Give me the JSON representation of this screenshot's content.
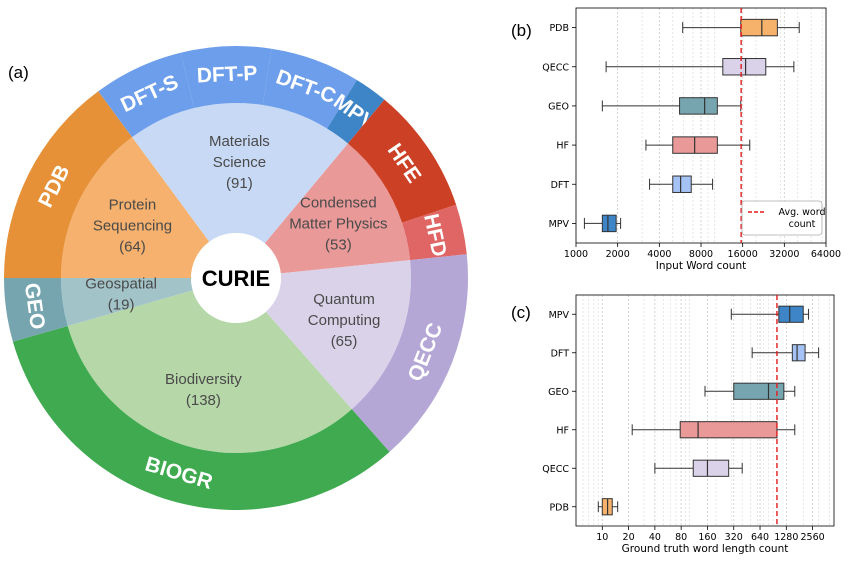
{
  "panels": {
    "a": "(a)",
    "b": "(b)",
    "c": "(c)"
  },
  "chart_data": [
    {
      "type": "pie",
      "panel": "(a)",
      "center_label": "CURIE",
      "inner": [
        {
          "lines": [
            "Protein",
            "Sequencing",
            "(64)"
          ],
          "value": 64,
          "color": "#f5b16d"
        },
        {
          "lines": [
            "Materials",
            "Science",
            "(91)"
          ],
          "value": 91,
          "color": "#c8d9f5"
        },
        {
          "lines": [
            "Condensed",
            "Matter Physics",
            "(53)"
          ],
          "value": 53,
          "color": "#ea9999"
        },
        {
          "lines": [
            "Quantum",
            "Computing",
            "(65)"
          ],
          "value": 65,
          "color": "#d9d2e9"
        },
        {
          "lines": [
            "Biodiversity",
            "(138)"
          ],
          "value": 138,
          "color": "#b6d7a8"
        },
        {
          "lines": [
            "Geospatial",
            "(19)"
          ],
          "value": 19,
          "color": "#a2c4c9"
        }
      ],
      "outer": [
        {
          "label": "PDB",
          "value": 64,
          "color": "#e69138"
        },
        {
          "label": "DFT-S",
          "value": 27,
          "color": "#6d9eeb"
        },
        {
          "label": "DFT-P",
          "value": 27,
          "color": "#6d9eeb"
        },
        {
          "label": "DFT-C",
          "value": 27,
          "color": "#6d9eeb"
        },
        {
          "label": "MPV",
          "value": 10,
          "color": "#3d85c6"
        },
        {
          "label": "HFE",
          "value": 38,
          "color": "#cc4125"
        },
        {
          "label": "HFD",
          "value": 15,
          "color": "#e06666"
        },
        {
          "label": "QECC",
          "value": 65,
          "color": "#b4a7d6"
        },
        {
          "label": "BIOGR",
          "value": 138,
          "color": "#3faa50"
        },
        {
          "label": "GEO",
          "value": 19,
          "color": "#76a5af"
        }
      ]
    },
    {
      "type": "box",
      "panel": "(b)",
      "xlabel": "Input Word count",
      "xscale": "log2",
      "xlim": [
        1000,
        64000
      ],
      "xticks": [
        1000,
        2000,
        4000,
        8000,
        16000,
        32000,
        64000
      ],
      "xtick_labels": [
        "1000",
        "2000",
        "4000",
        "8000",
        "16000",
        "32000",
        "64000"
      ],
      "reference_line": {
        "value": 15600,
        "label_lines": [
          "Avg. word",
          "count"
        ],
        "color": "#e31a1c"
      },
      "boxes": [
        {
          "label": "PDB",
          "whislo": 5900,
          "q1": 15500,
          "med": 22000,
          "q3": 28500,
          "whishi": 41000,
          "color": "#f6b26b"
        },
        {
          "label": "QECC",
          "whislo": 1650,
          "q1": 11500,
          "med": 16800,
          "q3": 23500,
          "whishi": 37500,
          "color": "#d9d2e9"
        },
        {
          "label": "GEO",
          "whislo": 1550,
          "q1": 5600,
          "med": 8500,
          "q3": 10500,
          "whishi": 15500,
          "color": "#76a5af"
        },
        {
          "label": "HF",
          "whislo": 3200,
          "q1": 5000,
          "med": 7200,
          "q3": 10500,
          "whishi": 18000,
          "color": "#ea9999"
        },
        {
          "label": "DFT",
          "whislo": 3400,
          "q1": 5000,
          "med": 5700,
          "q3": 6800,
          "whishi": 9700,
          "color": "#a4c2f4"
        },
        {
          "label": "MPV",
          "whislo": 1150,
          "q1": 1550,
          "med": 1700,
          "q3": 1950,
          "whishi": 2100,
          "color": "#3d85c6"
        }
      ],
      "legend": {
        "position": "bottom-right"
      }
    },
    {
      "type": "box",
      "panel": "(c)",
      "xlabel": "Ground truth word length count",
      "xscale": "log2",
      "xlim": [
        5,
        4500
      ],
      "xticks": [
        10,
        20,
        40,
        80,
        160,
        320,
        640,
        1280,
        2560
      ],
      "xtick_labels": [
        "10",
        "20",
        "40",
        "80",
        "160",
        "320",
        "640",
        "1280",
        "2560"
      ],
      "reference_line": {
        "value": 1000,
        "color": "#e31a1c"
      },
      "boxes": [
        {
          "label": "MPV",
          "whislo": 300,
          "q1": 1050,
          "med": 1400,
          "q3": 2000,
          "whishi": 2300,
          "color": "#3d85c6"
        },
        {
          "label": "DFT",
          "whislo": 520,
          "q1": 1500,
          "med": 1700,
          "q3": 2100,
          "whishi": 3000,
          "color": "#a4c2f4"
        },
        {
          "label": "GEO",
          "whislo": 150,
          "q1": 320,
          "med": 800,
          "q3": 1200,
          "whishi": 1600,
          "color": "#76a5af"
        },
        {
          "label": "HF",
          "whislo": 22,
          "q1": 78,
          "med": 125,
          "q3": 1000,
          "whishi": 1600,
          "color": "#ea9999"
        },
        {
          "label": "QECC",
          "whislo": 40,
          "q1": 110,
          "med": 160,
          "q3": 280,
          "whishi": 400,
          "color": "#d9d2e9"
        },
        {
          "label": "PDB",
          "whislo": 9,
          "q1": 10,
          "med": 11.5,
          "q3": 13,
          "whishi": 15,
          "color": "#f6b26b"
        }
      ]
    }
  ]
}
